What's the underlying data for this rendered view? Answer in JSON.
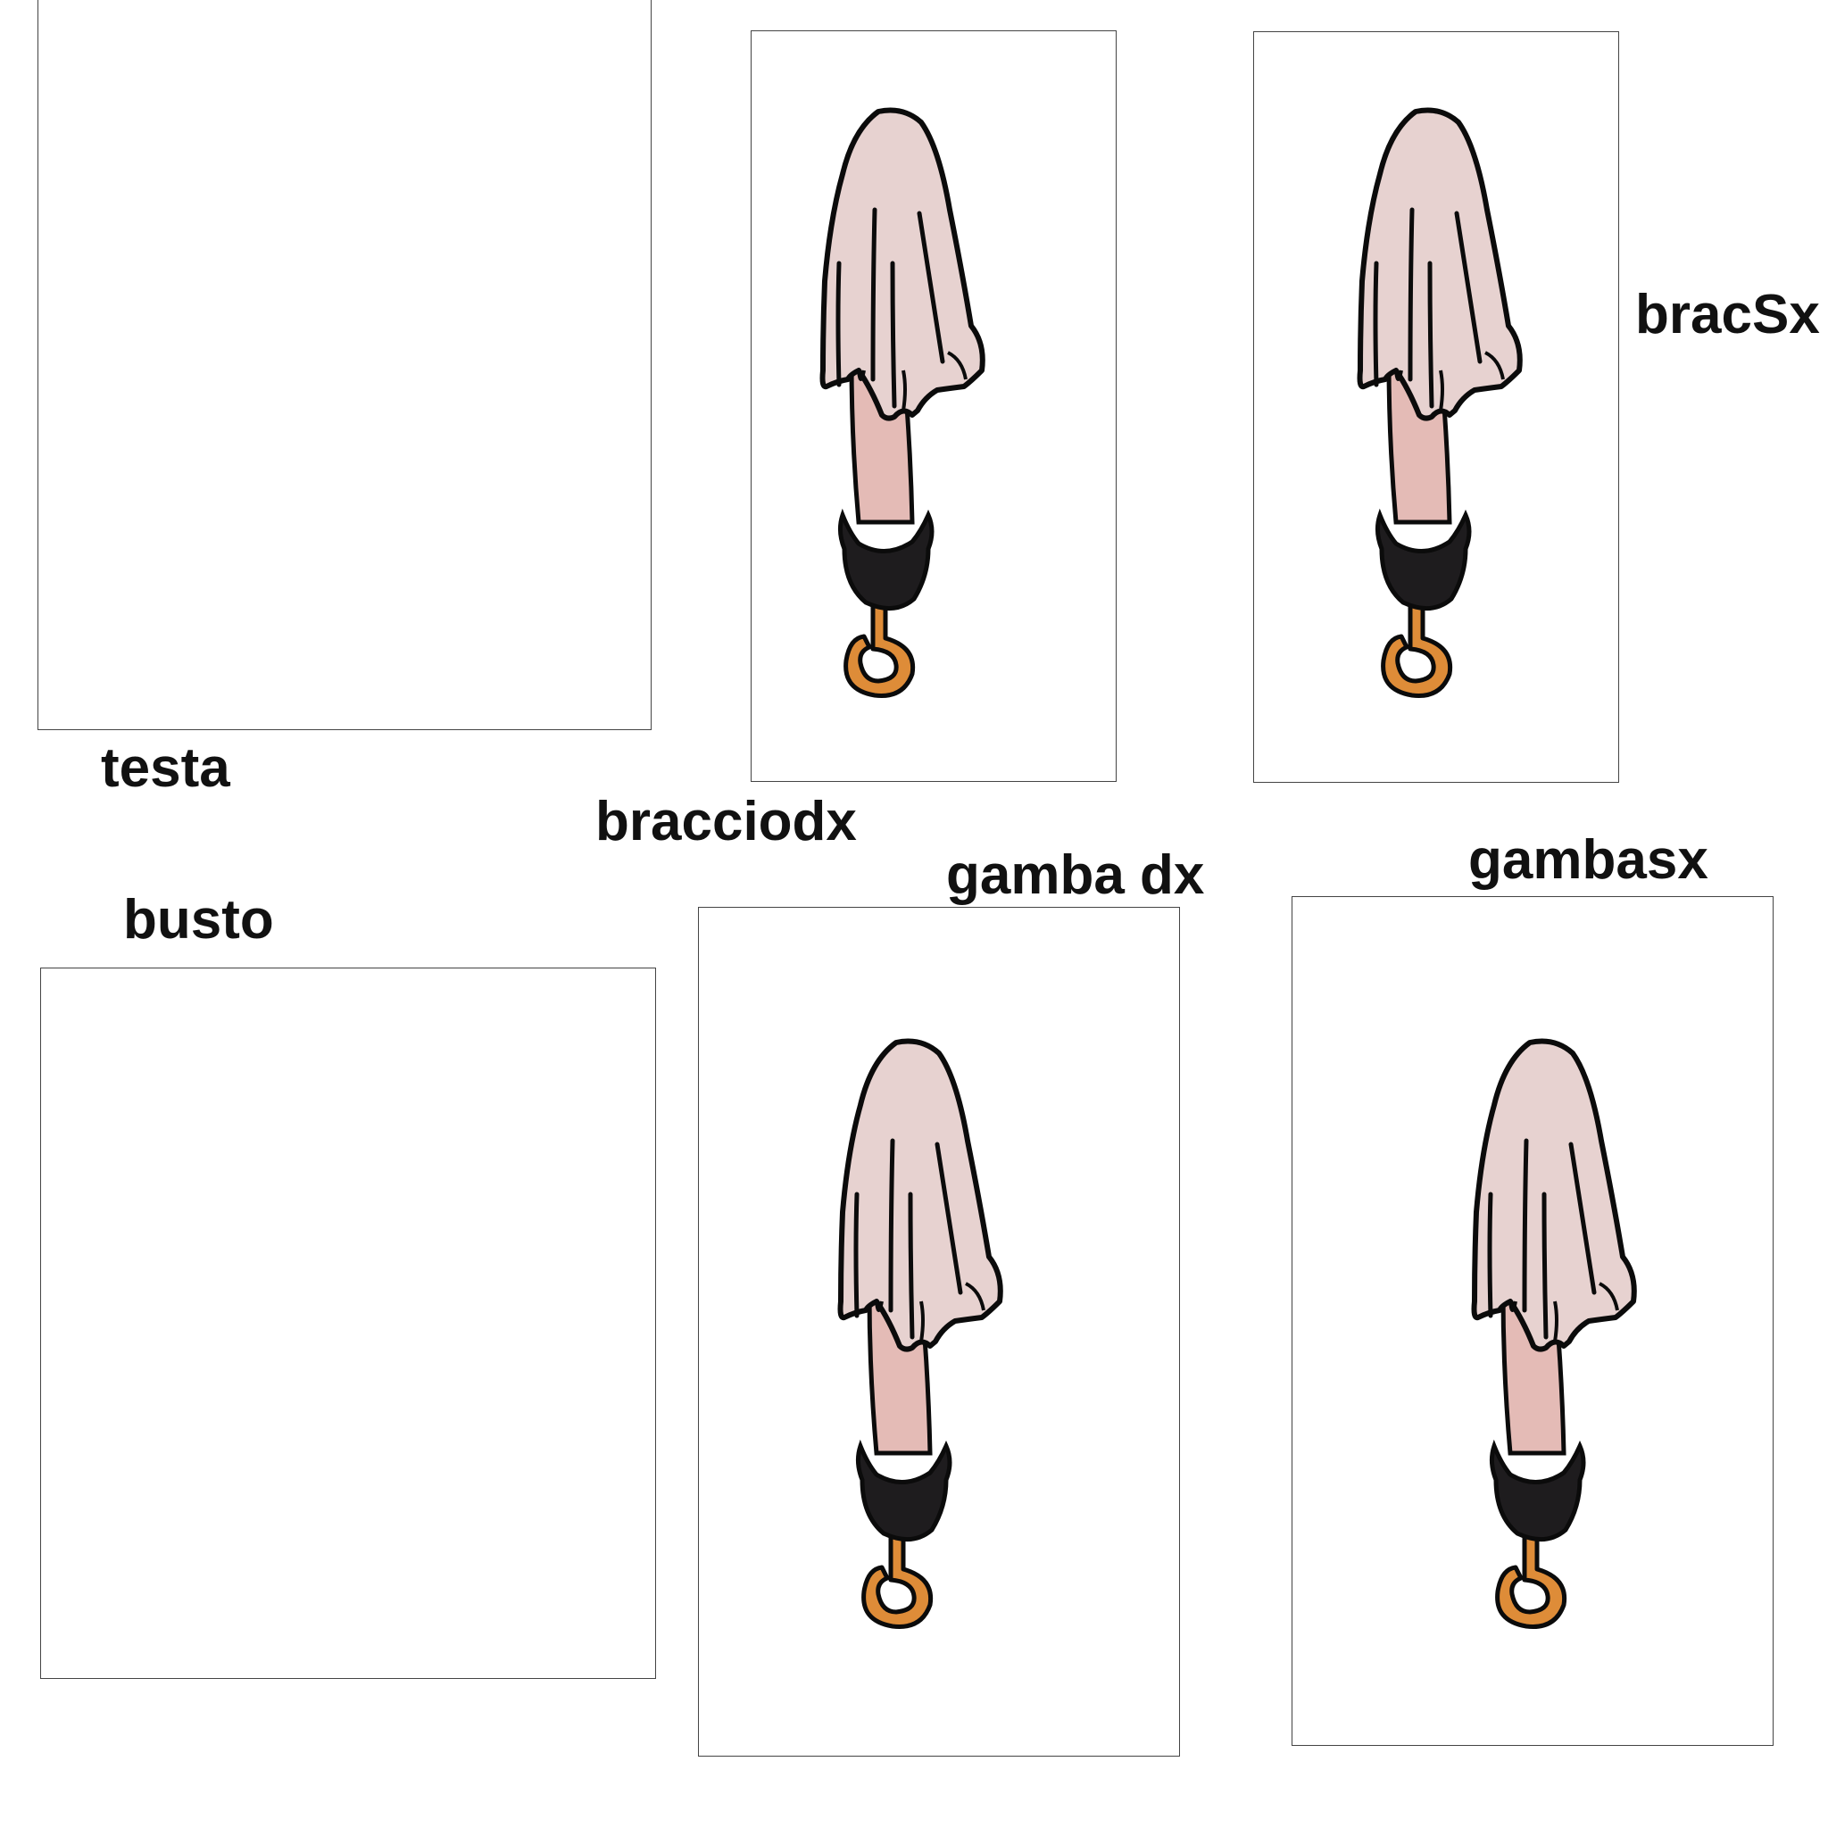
{
  "labels": {
    "testa": "testa",
    "bracciodx": "bracciodx",
    "bracSx": "bracSx",
    "busto": "busto",
    "gamba_dx": "gamba dx",
    "gambasx": "gambasx"
  },
  "colors": {
    "sleeve": "#e7d2d0",
    "skin": "#e4bbb6",
    "cuff": "#1e1c1e",
    "hook": "#de8c38",
    "outline": "#0b0b0b"
  },
  "icons": {
    "part": "hook-arm-icon"
  }
}
